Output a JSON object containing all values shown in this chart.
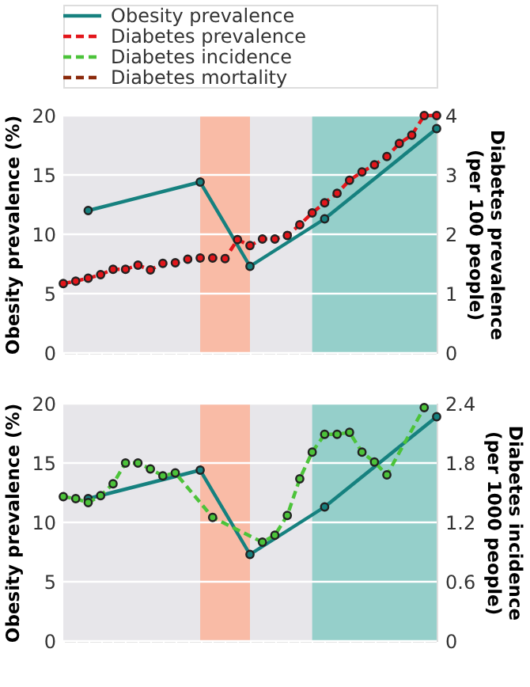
{
  "chart_data": [
    {
      "type": "line",
      "ylabel": "Obesity prevalence (%)",
      "y2label": "Diabetes prevalence (per 100 people)",
      "categories": [
        null,
        null,
        null,
        null,
        null,
        null,
        null,
        null,
        null,
        null,
        null,
        null,
        null,
        null,
        null,
        null,
        null,
        null,
        null,
        null,
        null,
        null,
        null,
        null,
        null,
        null,
        null,
        null,
        null,
        null,
        null
      ],
      "ylim": [
        0,
        20
      ],
      "yticks": [
        0,
        5,
        10,
        15,
        20
      ],
      "y2lim": [
        0,
        4
      ],
      "y2ticks": [
        0,
        1,
        2,
        3,
        4
      ],
      "grid": "y",
      "legend": "top",
      "marker": "circle",
      "series": [
        {
          "name": "Obesity prevalence",
          "color": "#16817f",
          "line_style": "solid",
          "values": [
            null,
            null,
            12.0,
            null,
            null,
            null,
            null,
            null,
            null,
            null,
            null,
            14.4,
            null,
            null,
            null,
            7.3,
            null,
            null,
            null,
            null,
            null,
            11.3,
            null,
            null,
            null,
            null,
            null,
            null,
            null,
            null,
            18.9
          ]
        },
        {
          "name": "Diabetes prevalence",
          "color": "#e3161b",
          "line_style": "dashed",
          "axis": "y2",
          "values": [
            1.17,
            1.21,
            1.26,
            1.32,
            1.41,
            1.41,
            1.48,
            1.4,
            1.51,
            1.52,
            1.58,
            1.6,
            1.6,
            1.59,
            1.91,
            1.81,
            1.92,
            1.92,
            1.98,
            2.16,
            2.36,
            2.53,
            2.69,
            2.91,
            3.05,
            3.17,
            3.31,
            3.53,
            3.67,
            4.0,
            4.0
          ]
        }
      ]
    },
    {
      "type": "line",
      "ylabel": "Obesity prevalence (%)",
      "y2label": "Diabetes incidence (per 1000 people)",
      "categories": [
        null,
        null,
        null,
        null,
        null,
        null,
        null,
        null,
        null,
        null,
        null,
        null,
        null,
        null,
        null,
        null,
        null,
        null,
        null,
        null,
        null,
        null,
        null,
        null,
        null,
        null,
        null,
        null,
        null,
        null,
        null
      ],
      "ylim": [
        0,
        20
      ],
      "yticks": [
        0,
        5,
        10,
        15,
        20
      ],
      "y2lim": [
        0,
        2.4
      ],
      "y2ticks": [
        0,
        0.6,
        1.2,
        1.8,
        2.4
      ],
      "grid": "y",
      "marker": "circle",
      "series": [
        {
          "name": "Obesity prevalence",
          "color": "#16817f",
          "line_style": "solid",
          "values": [
            null,
            null,
            12.0,
            null,
            null,
            null,
            null,
            null,
            null,
            null,
            null,
            14.4,
            null,
            null,
            null,
            7.3,
            null,
            null,
            null,
            null,
            null,
            11.3,
            null,
            null,
            null,
            null,
            null,
            null,
            null,
            null,
            18.9
          ]
        },
        {
          "name": "Diabetes incidence",
          "color": "#4cc33a",
          "line_style": "dashed",
          "axis": "y2",
          "values": [
            1.46,
            1.44,
            1.4,
            1.47,
            1.59,
            1.8,
            1.8,
            1.74,
            1.67,
            1.7,
            null,
            null,
            1.25,
            null,
            null,
            null,
            1.0,
            1.07,
            1.27,
            1.64,
            1.91,
            2.09,
            2.09,
            2.11,
            1.91,
            1.81,
            1.68,
            null,
            null,
            2.36,
            null
          ]
        },
        {
          "name": "Diabetes mortality",
          "color": "#8b2a0c",
          "line_style": "dashed",
          "axis": "y2",
          "values": [
            null,
            null,
            null,
            null,
            null,
            null,
            null,
            null,
            null,
            null,
            null,
            null,
            null,
            null,
            null,
            null,
            null,
            null,
            null,
            null,
            null,
            null,
            null,
            null,
            null,
            null,
            null,
            null,
            null,
            null,
            null
          ]
        }
      ]
    }
  ]
}
